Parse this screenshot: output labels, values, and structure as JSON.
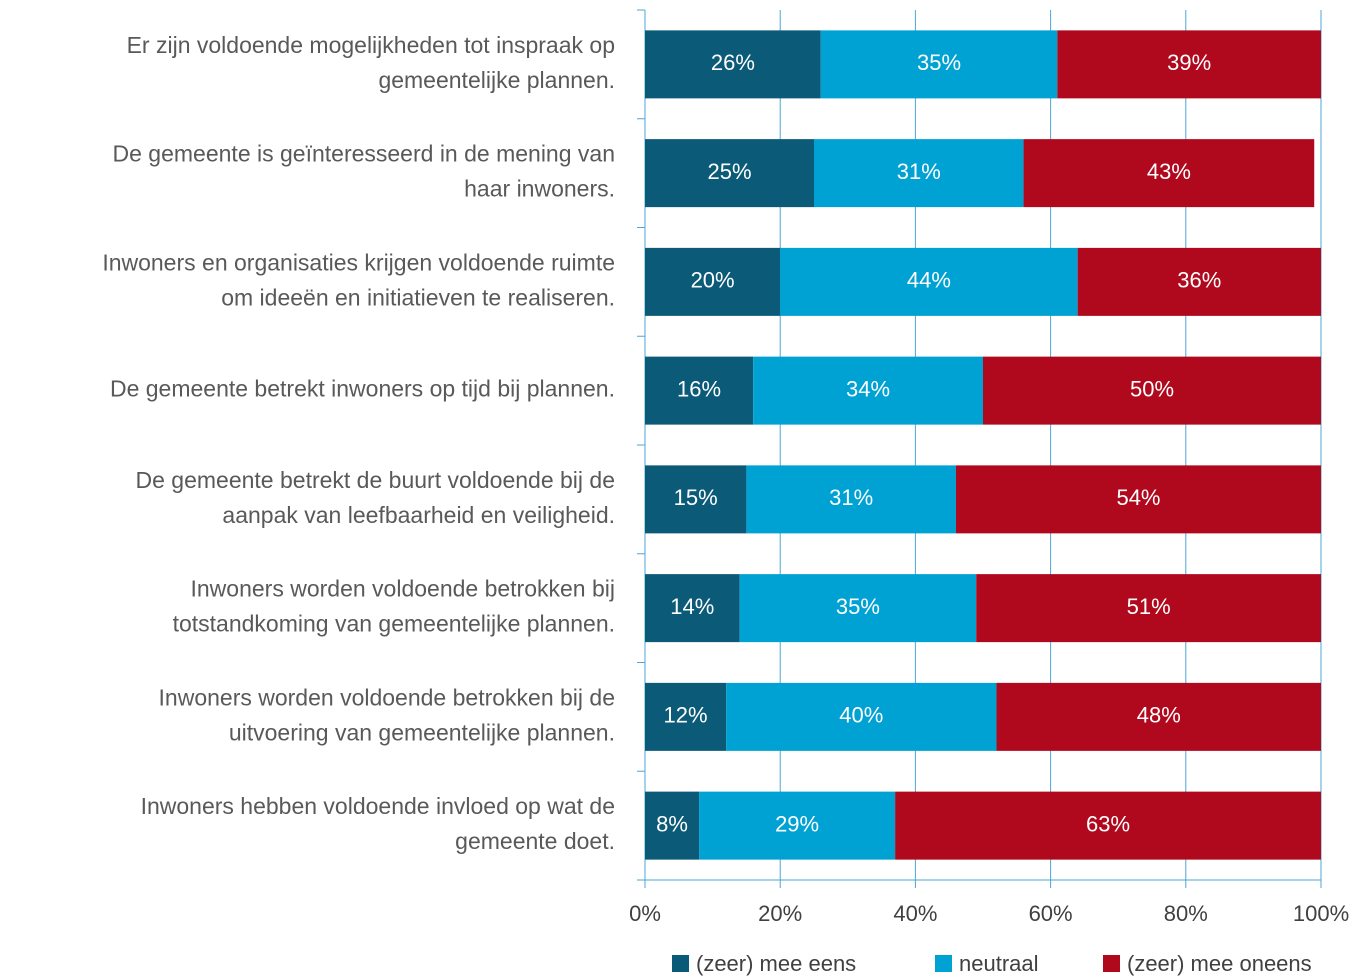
{
  "chart_data": {
    "type": "stacked_barh",
    "categories": [
      [
        "Er zijn voldoende mogelijkheden tot inspraak op",
        "gemeentelijke plannen."
      ],
      [
        "De gemeente is geïnteresseerd in de mening van",
        "haar inwoners."
      ],
      [
        "Inwoners en organisaties krijgen voldoende ruimte",
        "om ideeën en initiatieven te realiseren."
      ],
      [
        "De gemeente betrekt inwoners op tijd bij plannen."
      ],
      [
        "De gemeente betrekt de buurt voldoende bij de",
        "aanpak van leefbaarheid en veiligheid."
      ],
      [
        "Inwoners worden voldoende betrokken bij",
        "totstandkoming van gemeentelijke plannen."
      ],
      [
        "Inwoners worden voldoende betrokken bij de",
        "uitvoering van gemeentelijke plannen."
      ],
      [
        "Inwoners hebben voldoende invloed op wat de",
        "gemeente doet."
      ]
    ],
    "series": [
      {
        "name": "(zeer) mee eens",
        "color": "#0b5a78",
        "values": [
          26,
          25,
          20,
          16,
          15,
          14,
          12,
          8
        ],
        "value_labels": [
          "26%",
          "25%",
          "20%",
          "16%",
          "15%",
          "14%",
          "12%",
          "8%"
        ]
      },
      {
        "name": "neutraal",
        "color": "#00a2d3",
        "values": [
          35,
          31,
          44,
          34,
          31,
          35,
          40,
          29
        ],
        "value_labels": [
          "35%",
          "31%",
          "44%",
          "34%",
          "31%",
          "35%",
          "40%",
          "29%"
        ]
      },
      {
        "name": "(zeer) mee oneens",
        "color": "#b0091e",
        "values": [
          39,
          43,
          36,
          50,
          54,
          51,
          48,
          63
        ],
        "value_labels": [
          "39%",
          "43%",
          "36%",
          "50%",
          "54%",
          "51%",
          "48%",
          "63%"
        ]
      }
    ],
    "xlim": [
      0,
      100
    ],
    "xticks": [
      {
        "value": 0,
        "label": "0%"
      },
      {
        "value": 20,
        "label": "20%"
      },
      {
        "value": 40,
        "label": "40%"
      },
      {
        "value": 60,
        "label": "60%"
      },
      {
        "value": 80,
        "label": "80%"
      },
      {
        "value": 100,
        "label": "100%"
      }
    ],
    "grid": true,
    "legend": "bottom"
  }
}
